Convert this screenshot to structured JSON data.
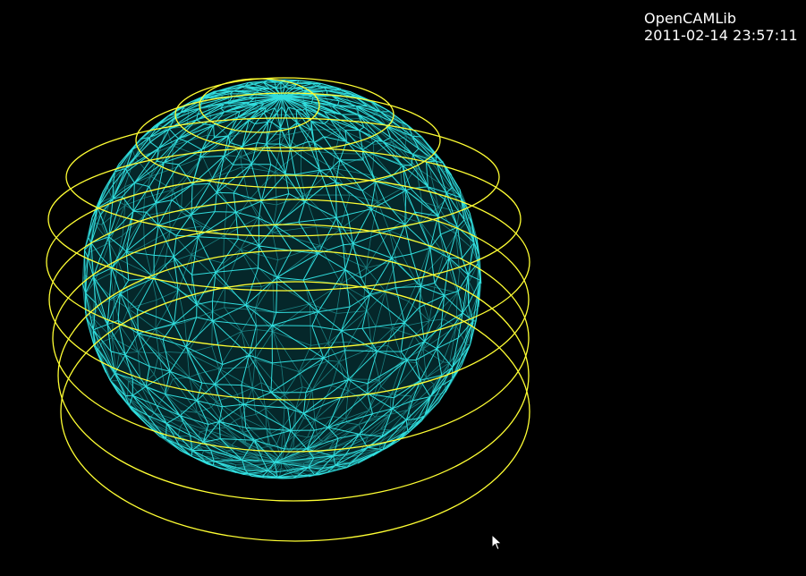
{
  "window": {
    "title": "OpenCAMLib",
    "timestamp": "2011-02-14 23:57:11"
  },
  "scene": {
    "background_color": "#000000",
    "sphere": {
      "type": "triangulated-sphere-wireframe",
      "color": "#33e6e6"
    },
    "rings": {
      "count": 10,
      "color": "#ffff33"
    }
  },
  "icons": {
    "cursor": "mouse-pointer-icon"
  }
}
